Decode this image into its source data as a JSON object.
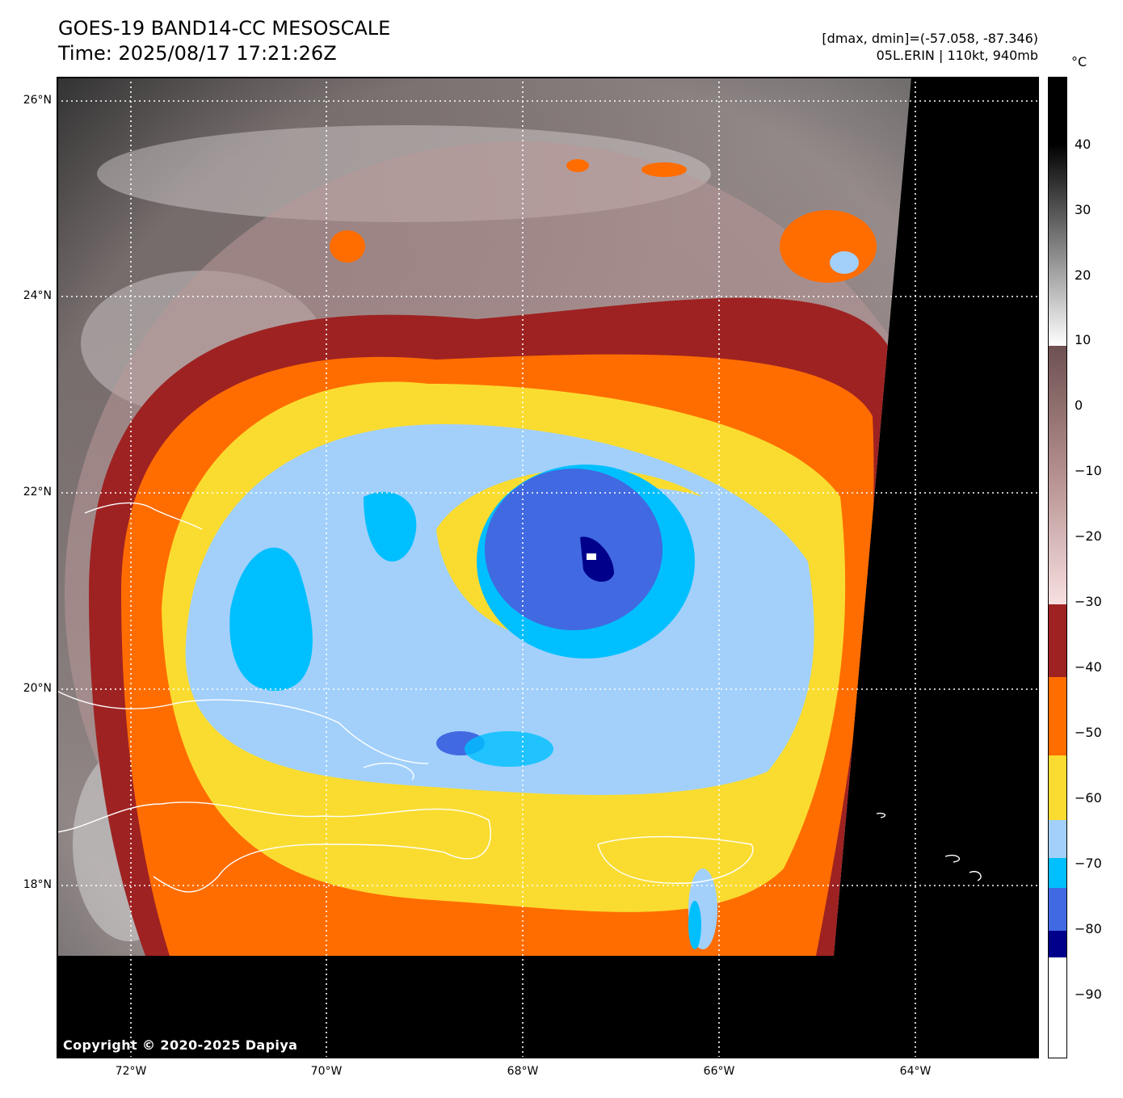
{
  "header": {
    "title_line1": "GOES-19 BAND14-CC MESOSCALE",
    "title_line2": "Time: 2025/08/17 17:21:26Z",
    "info_line1": "[dmax, dmin]=(-57.058, -87.346)",
    "info_line2": "05L.ERIN | 110kt, 940mb"
  },
  "map": {
    "lat_labels": [
      "26°N",
      "24°N",
      "22°N",
      "20°N",
      "18°N"
    ],
    "lon_labels": [
      "72°W",
      "70°W",
      "68°W",
      "66°W",
      "64°W"
    ],
    "storm": {
      "name": "05L.ERIN",
      "intensity_kt": 110,
      "pressure_mb": 940
    }
  },
  "colorbar": {
    "unit": "°C",
    "ticks": [
      "40",
      "30",
      "20",
      "10",
      "0",
      "−10",
      "−20",
      "−30",
      "−40",
      "−50",
      "−60",
      "−70",
      "−80",
      "−90"
    ],
    "colors": {
      "warm_black": "#000000",
      "gray": "#7a7a7a",
      "white": "#ffffff",
      "rose_brown": "#7a5a58",
      "pink": "#f4d8d8",
      "dark_red": "#9e2222",
      "orange": "#ff6d00",
      "yellow": "#fadc30",
      "light_blue": "#a2d0fb",
      "cyan": "#00bfff",
      "royal_blue": "#4169e1",
      "navy": "#00008b"
    }
  },
  "footer": {
    "copyright": "Copyright © 2020-2025 Dapiya"
  }
}
